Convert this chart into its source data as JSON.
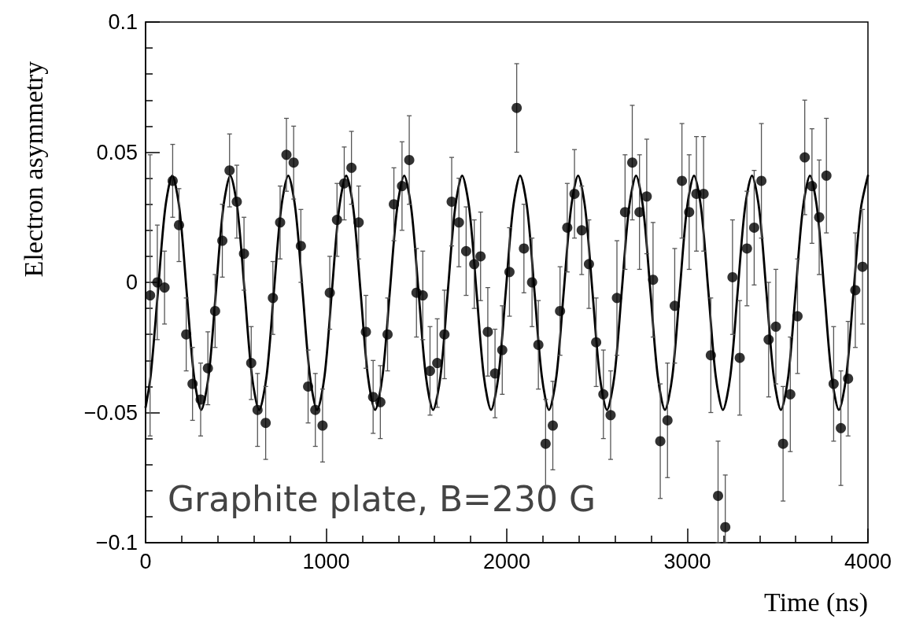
{
  "chart_data": {
    "type": "scatter",
    "xlabel": "Time (ns)",
    "ylabel": "Electron asymmetry",
    "annotations": [
      "Graphite plate, B=230 G"
    ],
    "xlim": [
      0,
      4000
    ],
    "xticks": [
      0,
      {
        "value": 200,
        "label": null
      },
      {
        "value": 400,
        "label": null
      },
      {
        "value": 600,
        "label": null
      },
      {
        "value": 800,
        "label": null
      },
      1000,
      {
        "value": 1200,
        "label": null
      },
      {
        "value": 1400,
        "label": null
      },
      {
        "value": 1600,
        "label": null
      },
      {
        "value": 1800,
        "label": null
      },
      2000,
      {
        "value": 2200,
        "label": null
      },
      {
        "value": 2400,
        "label": null
      },
      {
        "value": 2600,
        "label": null
      },
      {
        "value": 2800,
        "label": null
      },
      3000,
      {
        "value": 3200,
        "label": null
      },
      {
        "value": 3400,
        "label": null
      },
      {
        "value": 3600,
        "label": null
      },
      {
        "value": 3800,
        "label": null
      },
      4000
    ],
    "ylim": [
      -0.1,
      0.1
    ],
    "yticks": [
      {
        "value": -0.1,
        "label": "−0.1"
      },
      {
        "value": -0.09,
        "label": null
      },
      {
        "value": -0.08,
        "label": null
      },
      {
        "value": -0.07,
        "label": null
      },
      {
        "value": -0.06,
        "label": null
      },
      {
        "value": -0.05,
        "label": "−0.05"
      },
      {
        "value": -0.04,
        "label": null
      },
      {
        "value": -0.03,
        "label": null
      },
      {
        "value": -0.02,
        "label": null
      },
      {
        "value": -0.01,
        "label": null
      },
      0,
      {
        "value": 0.01,
        "label": null
      },
      {
        "value": 0.02,
        "label": null
      },
      {
        "value": 0.03,
        "label": null
      },
      {
        "value": 0.04,
        "label": null
      },
      0.05,
      {
        "value": 0.06,
        "label": null
      },
      {
        "value": 0.07,
        "label": null
      },
      {
        "value": 0.08,
        "label": null
      },
      {
        "value": 0.09,
        "label": null
      },
      0.1
    ],
    "series": [
      {
        "color": "#000000",
        "marker": "circle",
        "x": [
          25,
          65,
          105,
          150,
          185,
          225,
          260,
          305,
          345,
          385,
          425,
          465,
          505,
          545,
          585,
          620,
          665,
          705,
          745,
          780,
          820,
          860,
          900,
          940,
          980,
          1020,
          1060,
          1100,
          1140,
          1180,
          1220,
          1260,
          1300,
          1340,
          1375,
          1420,
          1460,
          1500,
          1535,
          1575,
          1615,
          1655,
          1695,
          1735,
          1775,
          1820,
          1855,
          1895,
          1935,
          1975,
          2015,
          2055,
          2095,
          2140,
          2175,
          2215,
          2255,
          2295,
          2335,
          2375,
          2415,
          2455,
          2495,
          2535,
          2575,
          2610,
          2655,
          2695,
          2735,
          2775,
          2810,
          2850,
          2890,
          2930,
          2970,
          3010,
          3050,
          3090,
          3130,
          3170,
          3210,
          3250,
          3290,
          3330,
          3370,
          3410,
          3450,
          3490,
          3530,
          3570,
          3610,
          3650,
          3690,
          3730,
          3770,
          3810,
          3850,
          3890,
          3930,
          3970
        ],
        "values": [
          -0.005,
          0.0,
          -0.002,
          0.039,
          0.022,
          -0.02,
          -0.039,
          -0.045,
          -0.033,
          -0.011,
          0.016,
          0.043,
          0.031,
          0.011,
          -0.031,
          -0.049,
          -0.054,
          -0.006,
          0.023,
          0.049,
          0.046,
          0.014,
          -0.04,
          -0.049,
          -0.055,
          -0.004,
          0.024,
          0.038,
          0.044,
          0.023,
          -0.019,
          -0.044,
          -0.046,
          -0.02,
          0.03,
          0.037,
          0.047,
          -0.004,
          -0.005,
          -0.034,
          -0.031,
          -0.02,
          0.031,
          0.023,
          0.012,
          0.007,
          0.01,
          -0.019,
          -0.035,
          -0.026,
          0.004,
          0.067,
          0.013,
          0.0,
          -0.024,
          -0.062,
          -0.055,
          -0.011,
          0.021,
          0.034,
          0.02,
          0.007,
          -0.023,
          -0.043,
          -0.051,
          -0.006,
          0.027,
          0.046,
          0.027,
          0.033,
          0.001,
          -0.061,
          -0.053,
          -0.009,
          0.039,
          0.027,
          0.034,
          0.034,
          -0.028,
          -0.082,
          -0.094,
          0.002,
          -0.029,
          0.013,
          0.021,
          0.039,
          -0.022,
          -0.017,
          -0.062,
          -0.043,
          -0.013,
          0.048,
          0.037,
          0.025,
          0.041,
          -0.039,
          -0.056,
          -0.037,
          -0.003,
          0.006
        ],
        "errors": [
          0.054,
          0.022,
          0.014,
          0.014,
          0.014,
          0.014,
          0.014,
          0.014,
          0.014,
          0.014,
          0.014,
          0.014,
          0.014,
          0.014,
          0.014,
          0.014,
          0.014,
          0.014,
          0.014,
          0.014,
          0.014,
          0.014,
          0.014,
          0.014,
          0.014,
          0.014,
          0.014,
          0.014,
          0.014,
          0.014,
          0.014,
          0.014,
          0.014,
          0.014,
          0.014,
          0.017,
          0.017,
          0.017,
          0.017,
          0.017,
          0.017,
          0.017,
          0.017,
          0.017,
          0.017,
          0.017,
          0.017,
          0.017,
          0.017,
          0.017,
          0.017,
          0.017,
          0.017,
          0.017,
          0.017,
          0.017,
          0.017,
          0.017,
          0.017,
          0.017,
          0.017,
          0.017,
          0.017,
          0.017,
          0.017,
          0.022,
          0.022,
          0.022,
          0.022,
          0.022,
          0.022,
          0.022,
          0.022,
          0.022,
          0.022,
          0.022,
          0.022,
          0.022,
          0.022,
          [
            -0.1,
            -0.061
          ],
          [
            -0.1,
            -0.074
          ],
          0.022,
          0.022,
          0.022,
          0.022,
          0.022,
          0.022,
          0.022,
          0.022,
          0.022,
          0.022,
          0.022,
          0.022,
          0.022,
          0.022,
          0.022,
          0.022,
          0.022,
          0.022,
          0.022
        ]
      },
      {
        "type": "line",
        "color": "#000000",
        "marker": "none",
        "line_style": "solid",
        "x": [
          0,
          28,
          68,
          108,
          148,
          188,
          228,
          268,
          308,
          349,
          389,
          429,
          469,
          509,
          549,
          589,
          629,
          670,
          710,
          750,
          790,
          830,
          870,
          910,
          950,
          991,
          1031,
          1071,
          1111,
          1151,
          1191,
          1231,
          1271,
          1312,
          1352,
          1392,
          1432,
          1472,
          1512,
          1552,
          1592,
          1633,
          1673,
          1713,
          1753,
          1793,
          1833,
          1873,
          1913,
          1954,
          1994,
          2034,
          2074,
          2114,
          2154,
          2194,
          2234,
          2275,
          2315,
          2355,
          2395,
          2435,
          2475,
          2515,
          2555,
          2596,
          2636,
          2676,
          2716,
          2756,
          2796,
          2836,
          2876,
          2917,
          2957,
          2997,
          3037,
          3077,
          3117,
          3157,
          3197,
          3238,
          3278,
          3318,
          3358,
          3398,
          3438,
          3478,
          3518,
          3559,
          3599,
          3639,
          3679,
          3719,
          3759,
          3799,
          3839,
          3880,
          3920,
          3960,
          4000
        ],
        "values": [
          -0.048,
          -0.036,
          -0.004,
          0.028,
          0.041,
          0.028,
          -0.004,
          -0.036,
          -0.049,
          -0.036,
          -0.004,
          0.028,
          0.041,
          0.028,
          -0.004,
          -0.036,
          -0.049,
          -0.036,
          -0.004,
          0.028,
          0.041,
          0.028,
          -0.004,
          -0.036,
          -0.049,
          -0.036,
          -0.004,
          0.028,
          0.041,
          0.028,
          -0.004,
          -0.036,
          -0.049,
          -0.036,
          -0.004,
          0.028,
          0.041,
          0.028,
          -0.004,
          -0.036,
          -0.049,
          -0.036,
          -0.004,
          0.028,
          0.041,
          0.028,
          -0.004,
          -0.036,
          -0.049,
          -0.036,
          -0.004,
          0.028,
          0.041,
          0.028,
          -0.004,
          -0.036,
          -0.049,
          -0.036,
          -0.004,
          0.028,
          0.041,
          0.028,
          -0.004,
          -0.036,
          -0.049,
          -0.036,
          -0.004,
          0.028,
          0.041,
          0.028,
          -0.004,
          -0.036,
          -0.049,
          -0.036,
          -0.004,
          0.028,
          0.041,
          0.028,
          -0.004,
          -0.036,
          -0.049,
          -0.036,
          -0.004,
          0.028,
          0.041,
          0.028,
          -0.004,
          -0.036,
          -0.049,
          -0.036,
          -0.004,
          0.028,
          0.041,
          0.028,
          -0.004,
          -0.036,
          -0.049,
          -0.036,
          -0.004,
          0.028,
          0.041
        ]
      }
    ]
  }
}
